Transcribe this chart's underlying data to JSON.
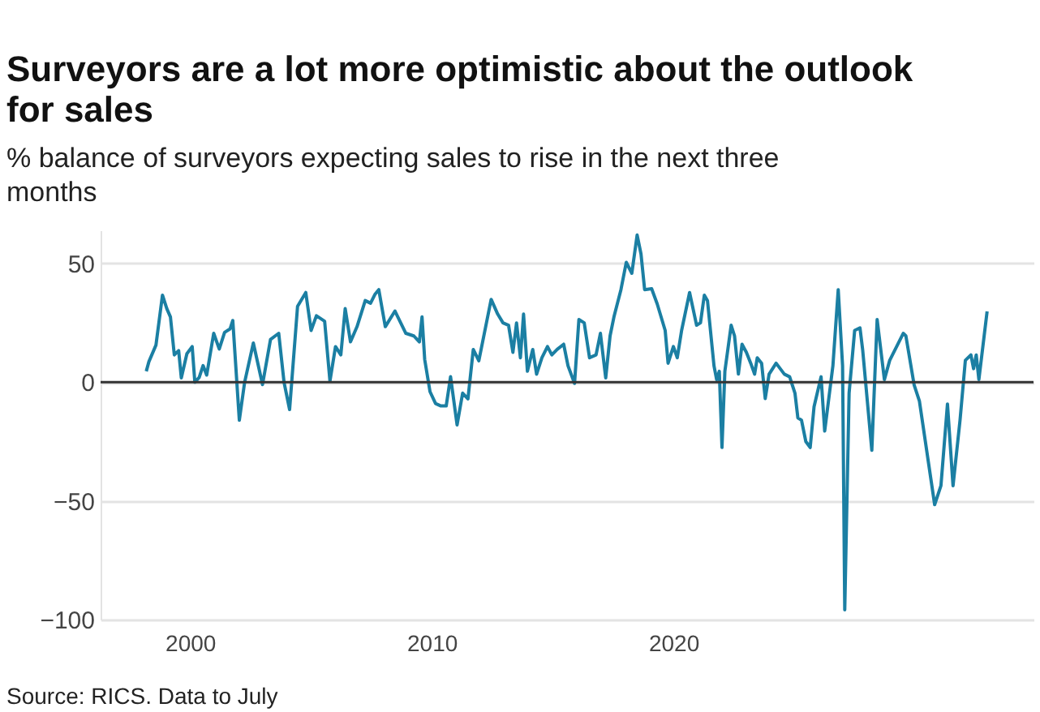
{
  "chart_data": {
    "type": "line",
    "title": "Surveyors are a lot more optimistic about the outlook for sales",
    "subtitle": "% balance of surveyors expecting sales to rise in the next three months",
    "annotations": [
      "Source: RICS. Data to July"
    ],
    "x": [
      1998.19,
      1998.3,
      1998.59,
      1998.86,
      1999.04,
      1999.19,
      1999.35,
      1999.53,
      1999.64,
      1999.87,
      2000.09,
      2000.2,
      2000.38,
      2000.54,
      2000.69,
      2000.98,
      2001.21,
      2001.43,
      2001.66,
      2001.77,
      2002.04,
      2002.26,
      2002.62,
      2002.77,
      2003.0,
      2003.33,
      2003.67,
      2003.89,
      2004.12,
      2004.45,
      2004.79,
      2005.01,
      2005.23,
      2005.57,
      2005.79,
      2006.02,
      2006.24,
      2006.42,
      2006.64,
      2006.91,
      2007.25,
      2007.47,
      2007.65,
      2007.81,
      2008.08,
      2008.48,
      2008.93,
      2009.26,
      2009.49,
      2009.6,
      2009.71,
      2009.93,
      2010.16,
      2010.38,
      2010.6,
      2010.78,
      2011.05,
      2011.28,
      2011.5,
      2011.72,
      2011.95,
      2012.46,
      2012.73,
      2012.95,
      2013.18,
      2013.36,
      2013.51,
      2013.67,
      2013.8,
      2013.96,
      2014.18,
      2014.34,
      2014.56,
      2014.79,
      2014.97,
      2015.19,
      2015.46,
      2015.64,
      2015.91,
      2016.09,
      2016.31,
      2016.53,
      2016.8,
      2016.98,
      2017.2,
      2017.38,
      2017.54,
      2017.83,
      2018.05,
      2018.28,
      2018.5,
      2018.66,
      2018.81,
      2019.1,
      2019.33,
      2019.66,
      2019.78,
      2020.0,
      2020.16,
      2020.34,
      2020.67,
      2020.96,
      2021.12,
      2021.28,
      2021.41,
      2021.68,
      2021.79,
      2021.9,
      2022.01,
      2022.13,
      2022.39,
      2022.53,
      2022.69,
      2022.84,
      2023.02,
      2023.2,
      2023.36,
      2023.47,
      2023.65,
      2023.8,
      2023.96,
      2024.25,
      2024.59,
      2024.81,
      2025.03,
      2025.15,
      2025.3,
      2025.48,
      2025.66,
      2025.82,
      2026.11,
      2026.26,
      2026.6,
      2026.82,
      2027.0,
      2027.09,
      2027.27,
      2027.5,
      2027.72,
      2027.83,
      2028.21,
      2028.43,
      2028.73,
      2028.95,
      2029.51,
      2029.62,
      2029.96,
      2030.18,
      2030.81,
      2031.07,
      2031.34,
      2031.57,
      2031.86,
      2032.08,
      2032.31,
      2032.42,
      2032.53,
      2032.64,
      2032.98
    ],
    "series": [
      {
        "color": "#1b7fa3",
        "values": [
          4.6,
          8.7,
          15.6,
          36.7,
          31,
          27.5,
          11.5,
          13.3,
          1.8,
          12,
          15,
          0,
          2,
          7,
          3,
          20.6,
          14,
          21,
          22.5,
          26,
          -16,
          0,
          16.5,
          9.6,
          -1,
          18,
          20.6,
          0,
          -11.5,
          32,
          37.8,
          21.8,
          28,
          25.7,
          0.5,
          15,
          11.5,
          31,
          17,
          23.4,
          34.4,
          33.3,
          37,
          39,
          23.4,
          30,
          20.6,
          19.5,
          17,
          27.5,
          9.6,
          -4,
          -9,
          -10,
          -10,
          2.3,
          -18,
          -4.6,
          -7,
          13.8,
          9,
          34.9,
          28.7,
          25,
          24,
          12.6,
          25,
          10.3,
          28.7,
          4.6,
          13.8,
          3.4,
          10.3,
          15,
          11.5,
          13.8,
          16,
          6.9,
          -0.5,
          26.4,
          25,
          10.3,
          11.5,
          20.6,
          1.8,
          19.5,
          27.5,
          39,
          50.5,
          45.9,
          62,
          54,
          39,
          39.4,
          33,
          21.8,
          8,
          15,
          10.3,
          21.8,
          37.8,
          24,
          25,
          36.7,
          34.4,
          6.9,
          1.1,
          4.6,
          -27.5,
          4.6,
          24,
          19.5,
          3.4,
          16,
          12.6,
          8,
          3.4,
          10.3,
          8,
          -6.9,
          3.4,
          8,
          3.4,
          2.3,
          -4.6,
          -15,
          -16,
          -25,
          -27.5,
          -10.3,
          2.3,
          -20.6,
          6.9,
          39,
          6.9,
          -95.9,
          -4.6,
          21.8,
          22.9,
          13.8,
          -28.7,
          26.4,
          1.1,
          9.2,
          20.6,
          19.5,
          -1.1,
          -8,
          -51.6,
          -43.6,
          -9.2,
          -43.6,
          -16,
          9.2,
          11.5,
          5.7,
          11.5,
          1.1,
          29.8
        ]
      }
    ],
    "xlim": [
      1996.3,
      2034.9
    ],
    "xticks": [
      2000,
      2010,
      2020
    ],
    "ylim": [
      -100,
      64
    ],
    "yticks": [
      -100,
      -50,
      0,
      50
    ],
    "grid": "y",
    "ref_lines": [
      {
        "axis": "y",
        "value": 0,
        "color": "#333333"
      }
    ]
  }
}
